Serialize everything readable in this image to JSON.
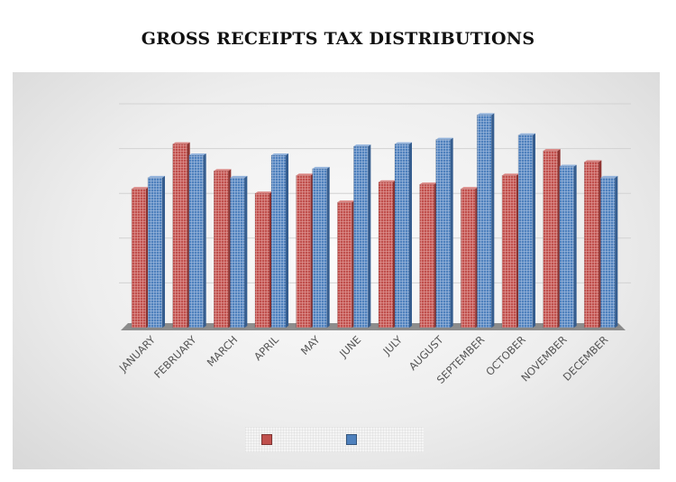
{
  "chart_data": {
    "type": "bar",
    "title": "GROSS RECEIPTS TAX DISTRIBUTIONS",
    "categories": [
      "JANUARY",
      "FEBRUARY",
      "MARCH",
      "APRIL",
      "MAY",
      "JUNE",
      "JULY",
      "AUGUST",
      "SEPTEMBER",
      "OCTOBER",
      "NOVEMBER",
      "DECEMBER"
    ],
    "series": [
      {
        "name": "",
        "color": "#c0504d",
        "values": [
          3.1,
          4.1,
          3.5,
          3.0,
          3.4,
          2.8,
          3.25,
          3.2,
          3.1,
          3.4,
          3.95,
          3.7
        ]
      },
      {
        "name": "",
        "color": "#4f81bd",
        "values": [
          3.35,
          3.85,
          3.35,
          3.85,
          3.55,
          4.05,
          4.1,
          4.2,
          4.75,
          4.3,
          3.6,
          3.35
        ]
      }
    ],
    "ylim": [
      0,
      5
    ],
    "grid": true,
    "legend_position": "bottom",
    "xlabel": "",
    "ylabel": ""
  }
}
